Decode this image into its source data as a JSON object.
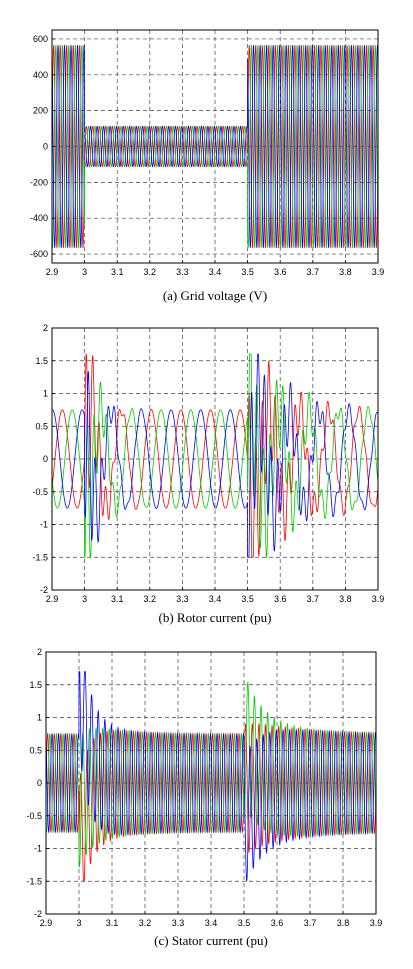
{
  "chart_data": [
    {
      "type": "line",
      "caption": "(a) Grid voltage (V)",
      "xlim": [
        2.9,
        3.9
      ],
      "ylim": [
        -650,
        650
      ],
      "x_ticks": [
        "2.9",
        "3",
        "3.1",
        "3.2",
        "3.3",
        "3.4",
        "3.5",
        "3.6",
        "3.7",
        "3.8",
        "3.9"
      ],
      "y_ticks": [
        "-600",
        "-400",
        "-200",
        "0",
        "200",
        "400",
        "600"
      ],
      "grid": true,
      "frequency_hz": 50,
      "series": [
        {
          "color": "#ff0000",
          "phase_deg": 0
        },
        {
          "color": "#00cc00",
          "phase_deg": -120
        },
        {
          "color": "#0000ff",
          "phase_deg": 120
        }
      ],
      "amplitude_segments": [
        {
          "x0": 2.9,
          "x1": 3.0,
          "amplitude": 565
        },
        {
          "x0": 3.0,
          "x1": 3.5,
          "amplitude": 113
        },
        {
          "x0": 3.5,
          "x1": 3.9,
          "amplitude": 565
        }
      ]
    },
    {
      "type": "line",
      "caption": "(b) Rotor current (pu)",
      "xlim": [
        2.9,
        3.9
      ],
      "ylim": [
        -2,
        2
      ],
      "x_ticks": [
        "2.9",
        "3",
        "3.1",
        "3.2",
        "3.3",
        "3.4",
        "3.5",
        "3.6",
        "3.7",
        "3.8",
        "3.9"
      ],
      "y_ticks": [
        "-2",
        "-1.5",
        "-1",
        "-0.5",
        "0",
        "0.5",
        "1",
        "1.5",
        "2"
      ],
      "grid": true,
      "frequency_hz": 11,
      "steady_amplitude": 0.75,
      "series": [
        {
          "color": "#ff0000",
          "phase_deg": 0
        },
        {
          "color": "#00cc00",
          "phase_deg": -120
        },
        {
          "color": "#0000ff",
          "phase_deg": 120
        }
      ],
      "transients": [
        {
          "t0": 3.0,
          "peak": 1.55,
          "decay_s": 0.04,
          "osc_hz": 50
        },
        {
          "t0": 3.5,
          "peak": 1.3,
          "decay_s": 0.12,
          "osc_hz": 50
        }
      ]
    },
    {
      "type": "line",
      "caption": "(c) Stator current (pu)",
      "xlim": [
        2.9,
        3.9
      ],
      "ylim": [
        -2,
        2
      ],
      "x_ticks": [
        "2.9",
        "3",
        "3.1",
        "3.2",
        "3.3",
        "3.4",
        "3.5",
        "3.6",
        "3.7",
        "3.8",
        "3.9"
      ],
      "y_ticks": [
        "-2",
        "-1.5",
        "-1",
        "-0.5",
        "0",
        "0.5",
        "1",
        "1.5",
        "2"
      ],
      "grid": true,
      "frequency_hz": 50,
      "steady_amplitude": 0.75,
      "series": [
        {
          "color": "#ff0000",
          "phase_deg": 0
        },
        {
          "color": "#00cc00",
          "phase_deg": -120
        },
        {
          "color": "#0000ff",
          "phase_deg": 120
        }
      ],
      "transients": [
        {
          "t0": 3.0,
          "dc_offsets": [
            -1.0,
            -0.3,
            1.55
          ],
          "decay_s": 0.03
        },
        {
          "t0": 3.5,
          "dc_offsets": [
            -0.1,
            0.7,
            -0.6
          ],
          "decay_s": 0.05
        }
      ]
    }
  ]
}
